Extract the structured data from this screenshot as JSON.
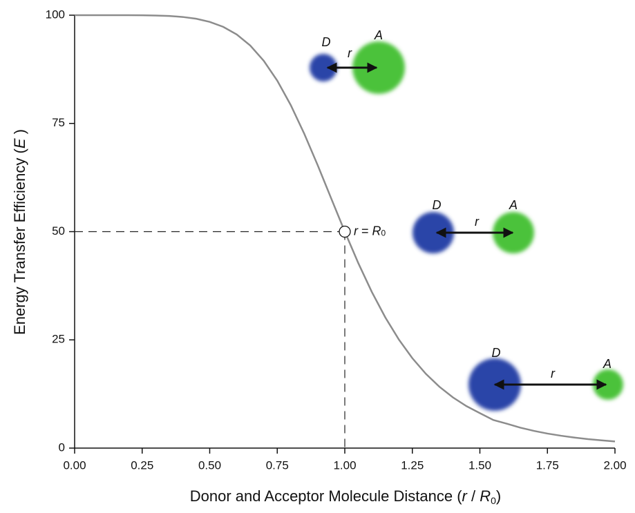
{
  "chart_data": {
    "type": "line",
    "xlabel": [
      "Donor and Acceptor Molecule Distance (",
      "r",
      " / ",
      "R",
      "0",
      ")"
    ],
    "ylabel": [
      "Energy Transfer Efficiency (",
      "E",
      " )"
    ],
    "x": [
      0,
      0.05,
      0.1,
      0.15,
      0.2,
      0.25,
      0.3,
      0.35,
      0.4,
      0.45,
      0.5,
      0.55,
      0.6,
      0.65,
      0.7,
      0.75,
      0.8,
      0.85,
      0.9,
      0.95,
      1.0,
      1.05,
      1.1,
      1.15,
      1.2,
      1.25,
      1.3,
      1.35,
      1.4,
      1.45,
      1.5,
      1.55,
      1.6,
      1.65,
      1.7,
      1.75,
      1.8,
      1.85,
      1.9,
      1.95,
      2.0
    ],
    "values": [
      100,
      100,
      100,
      100,
      99.99,
      99.98,
      99.93,
      99.82,
      99.59,
      99.18,
      98.46,
      97.31,
      95.54,
      92.99,
      89.47,
      84.89,
      79.23,
      72.61,
      65.3,
      57.63,
      50,
      42.73,
      36.08,
      30.18,
      25.09,
      20.77,
      17.16,
      14.18,
      11.72,
      9.71,
      8.07,
      6.48,
      5.63,
      4.72,
      3.98,
      3.36,
      2.86,
      2.44,
      2.08,
      1.79,
      1.54
    ],
    "color": "#8c8c8c",
    "xlim": [
      0,
      2
    ],
    "ylim": [
      0,
      100
    ],
    "xticks": [
      {
        "value": 0,
        "label": "0.00"
      },
      {
        "value": 0.25,
        "label": "0.25"
      },
      {
        "value": 0.5,
        "label": "0.50"
      },
      {
        "value": 0.75,
        "label": "0.75"
      },
      {
        "value": 1,
        "label": "1.00"
      },
      {
        "value": 1.25,
        "label": "1.25"
      },
      {
        "value": 1.5,
        "label": "1.50"
      },
      {
        "value": 1.75,
        "label": "1.75"
      },
      {
        "value": 2,
        "label": "2.00"
      }
    ],
    "yticks": [
      0,
      25,
      50,
      75,
      100
    ],
    "reference": {
      "x": 1,
      "y": 50,
      "label": [
        "r",
        " = ",
        "R",
        "0"
      ]
    },
    "diagrams": [
      {
        "donor": "D",
        "acceptor": "A",
        "distance": "r"
      },
      {
        "donor": "D",
        "acceptor": "A",
        "distance": "r"
      },
      {
        "donor": "D",
        "acceptor": "A",
        "distance": "r"
      }
    ]
  }
}
